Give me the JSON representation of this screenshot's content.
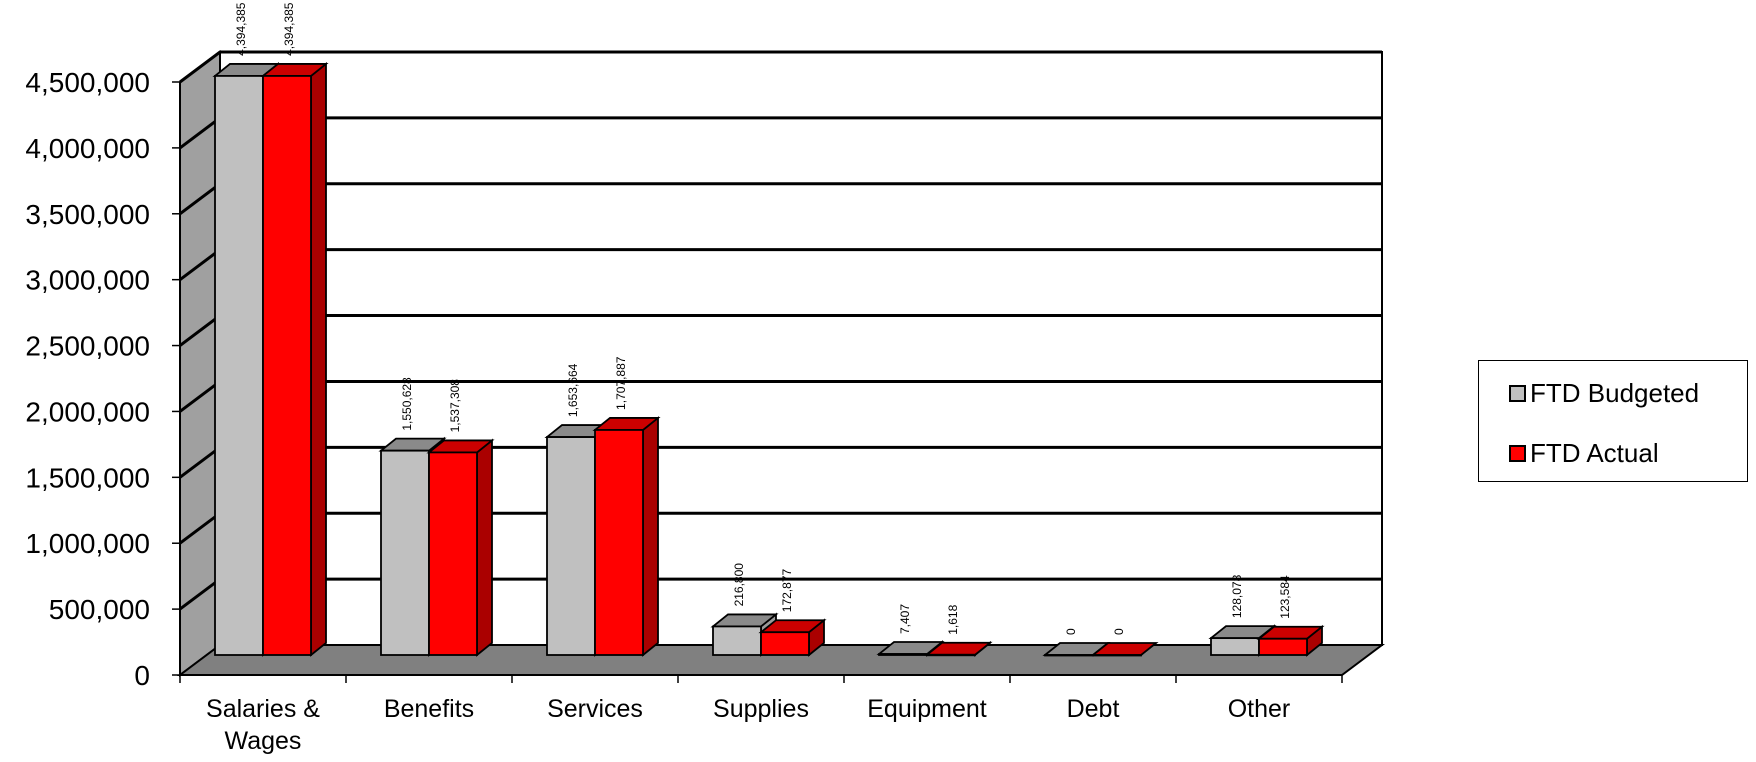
{
  "chart_data": {
    "type": "bar",
    "categories": [
      "Salaries & Wages",
      "Benefits",
      "Services",
      "Supplies",
      "Equipment",
      "Debt",
      "Other"
    ],
    "category_lines": [
      [
        "Salaries &",
        "Wages"
      ],
      [
        "Benefits"
      ],
      [
        "Services"
      ],
      [
        "Supplies"
      ],
      [
        "Equipment"
      ],
      [
        "Debt"
      ],
      [
        "Other"
      ]
    ],
    "series": [
      {
        "name": "FTD Budgeted",
        "values": [
          4394385,
          1550628,
          1653664,
          216800,
          7407,
          0,
          128078
        ],
        "labels": [
          "4,394,385",
          "1,550,628",
          "1,653,664",
          "216,800",
          "7,407",
          "0",
          "128,078"
        ],
        "color": "#c0c0c0"
      },
      {
        "name": "FTD Actual",
        "values": [
          4394385,
          1537308,
          1707887,
          172877,
          1618,
          0,
          123584
        ],
        "labels": [
          "4,394,385",
          "1,537,308",
          "1,707,887",
          "172,877",
          "1,618",
          "0",
          "123,584"
        ],
        "color": "#ff0000"
      }
    ],
    "ylim": [
      0,
      4500000
    ],
    "yticks": [
      "0",
      "500,000",
      "1,000,000",
      "1,500,000",
      "2,000,000",
      "2,500,000",
      "3,000,000",
      "3,500,000",
      "4,000,000",
      "4,500,000"
    ],
    "title": "",
    "xlabel": "",
    "ylabel": "",
    "grid": true,
    "legend_position": "right",
    "style": "3d-clustered-column",
    "wall_color": "#a0a0a0",
    "floor_color": "#808080"
  }
}
